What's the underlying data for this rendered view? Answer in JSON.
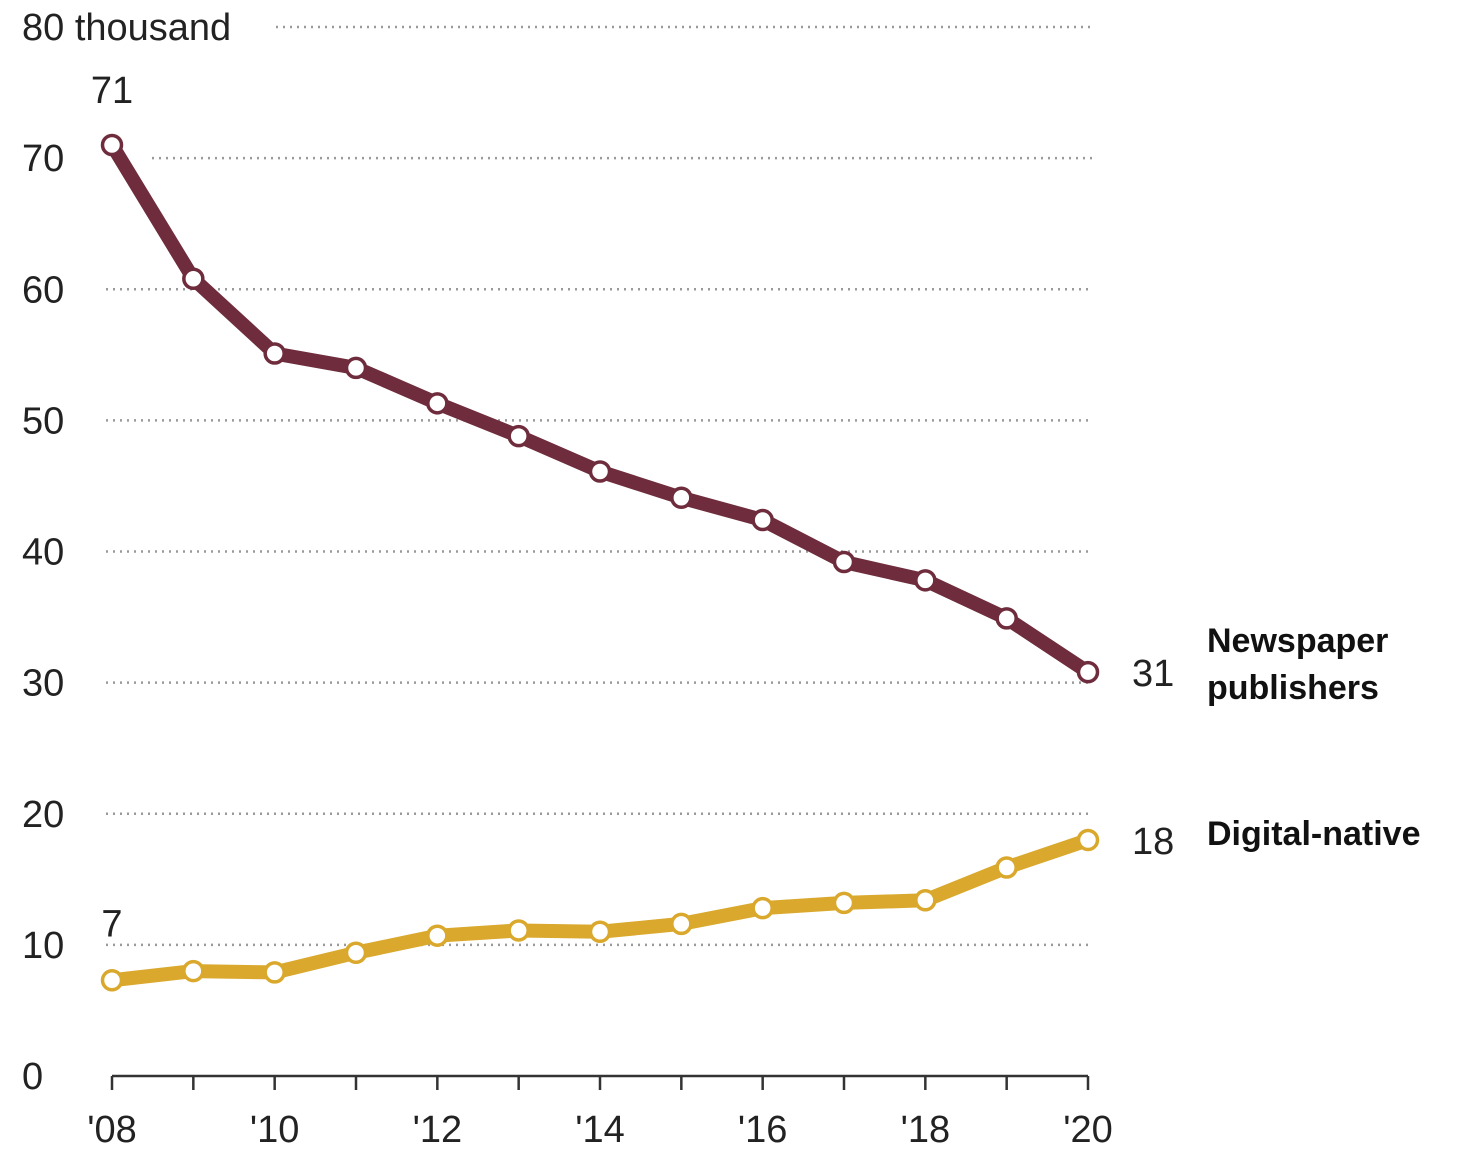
{
  "chart_data": {
    "type": "line",
    "x": [
      2008,
      2009,
      2010,
      2011,
      2012,
      2013,
      2014,
      2015,
      2016,
      2017,
      2018,
      2019,
      2020
    ],
    "xticks": [
      {
        "value": 2008,
        "label": "'08"
      },
      {
        "value": 2010,
        "label": "'10"
      },
      {
        "value": 2012,
        "label": "'12"
      },
      {
        "value": 2014,
        "label": "'14"
      },
      {
        "value": 2016,
        "label": "'16"
      },
      {
        "value": 2018,
        "label": "'18"
      },
      {
        "value": 2020,
        "label": "'20"
      }
    ],
    "yticks": [
      {
        "value": 80,
        "label": "80 thousand"
      },
      {
        "value": 70,
        "label": "70"
      },
      {
        "value": 60,
        "label": "60"
      },
      {
        "value": 50,
        "label": "50"
      },
      {
        "value": 40,
        "label": "40"
      },
      {
        "value": 30,
        "label": "30"
      },
      {
        "value": 20,
        "label": "20"
      },
      {
        "value": 10,
        "label": "10"
      },
      {
        "value": 0,
        "label": "0"
      }
    ],
    "ylim": [
      0,
      80
    ],
    "xlim": [
      2008,
      2020
    ],
    "grid": "horizontal dotted",
    "series": [
      {
        "name": "Newspaper publishers",
        "color": "#6e2c3c",
        "values": [
          71.0,
          60.8,
          55.1,
          54.0,
          51.3,
          48.8,
          46.1,
          44.1,
          42.4,
          39.2,
          37.8,
          34.9,
          30.8
        ],
        "start_label": "71",
        "end_label": "31"
      },
      {
        "name": "Digital-native",
        "color": "#d9a82c",
        "values": [
          7.3,
          8.0,
          7.9,
          9.4,
          10.7,
          11.1,
          11.0,
          11.6,
          12.8,
          13.2,
          13.4,
          15.9,
          18.0
        ],
        "start_label": "7",
        "end_label": "18"
      }
    ]
  }
}
